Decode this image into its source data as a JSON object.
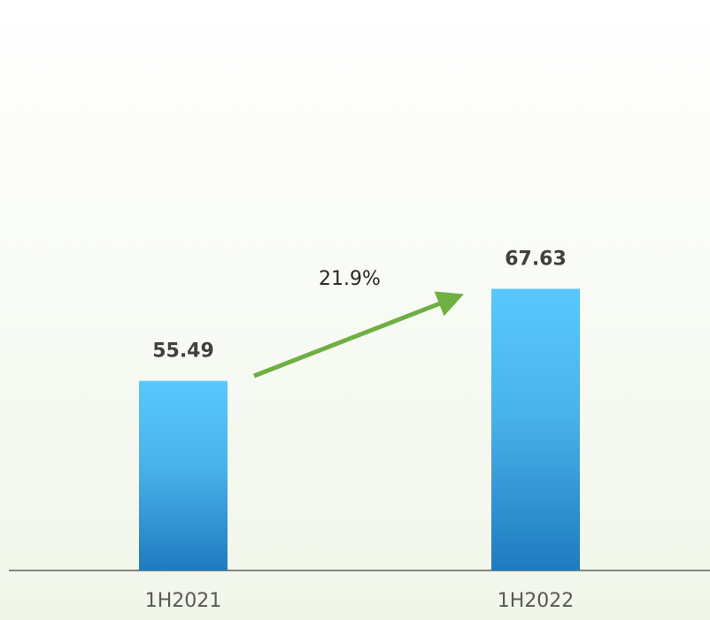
{
  "chart_data": {
    "type": "bar",
    "categories": [
      "1H2021",
      "1H2022"
    ],
    "values": [
      55.49,
      67.63
    ],
    "ylim": [
      30.5,
      105
    ],
    "annotation": "21.9%"
  }
}
